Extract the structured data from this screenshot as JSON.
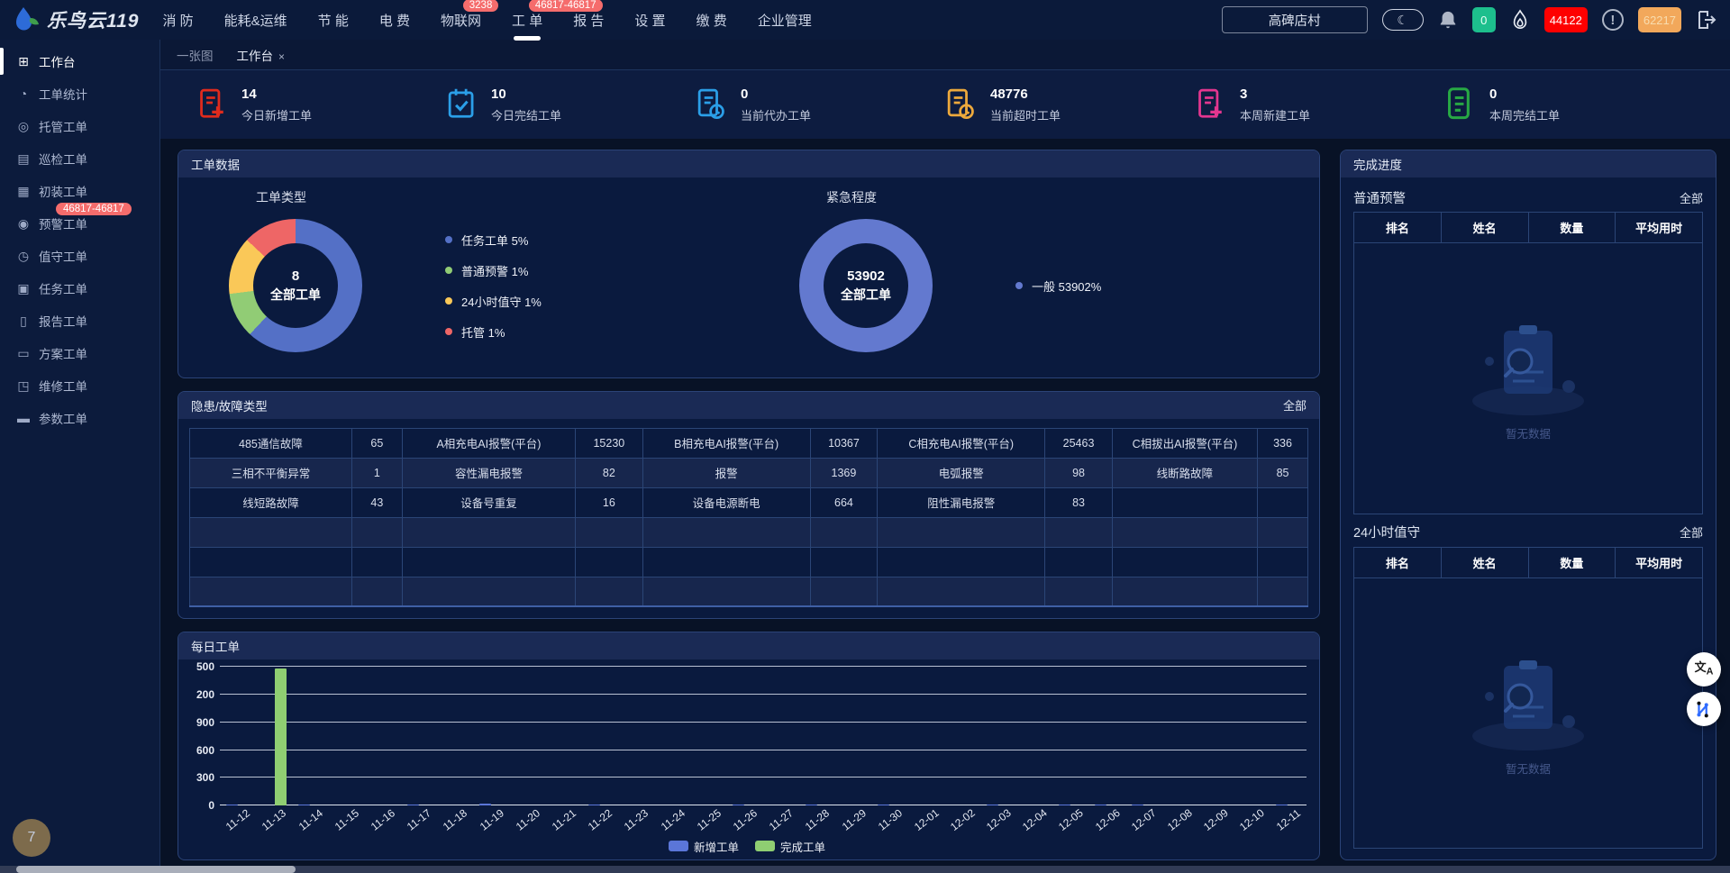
{
  "topbar": {
    "brand": "乐鸟云119",
    "nav_items": [
      {
        "label": "消 防"
      },
      {
        "label": "能耗&运维"
      },
      {
        "label": "节 能"
      },
      {
        "label": "电 费"
      },
      {
        "label": "物联网",
        "badge": "3238"
      },
      {
        "label": "工 单",
        "badge": "46817-46817",
        "active": true
      },
      {
        "label": "报 告"
      },
      {
        "label": "设 置"
      },
      {
        "label": "缴 费"
      },
      {
        "label": "企业管理"
      }
    ],
    "site_selector": "高碑店村",
    "counters": {
      "green": "0",
      "red": "44122",
      "orange": "62217"
    }
  },
  "sidebar": {
    "items": [
      {
        "label": "工作台",
        "icon": "workbench-icon",
        "glyph": "⊞",
        "active": true
      },
      {
        "label": "工单统计",
        "icon": "statistics-icon",
        "glyph": "◔"
      },
      {
        "label": "托管工单",
        "icon": "hosting-icon",
        "glyph": "◎"
      },
      {
        "label": "巡检工单",
        "icon": "inspection-icon",
        "glyph": "▤"
      },
      {
        "label": "初装工单",
        "icon": "install-icon",
        "glyph": "▦"
      },
      {
        "label": "预警工单",
        "icon": "alarm-icon",
        "glyph": "◉",
        "badge": "46817-46817"
      },
      {
        "label": "值守工单",
        "icon": "duty-icon",
        "glyph": "◷"
      },
      {
        "label": "任务工单",
        "icon": "task-icon",
        "glyph": "▣"
      },
      {
        "label": "报告工单",
        "icon": "report-icon",
        "glyph": "▯"
      },
      {
        "label": "方案工单",
        "icon": "plan-icon",
        "glyph": "▭"
      },
      {
        "label": "维修工单",
        "icon": "repair-icon",
        "glyph": "◳"
      },
      {
        "label": "参数工单",
        "icon": "parameter-icon",
        "glyph": "▬"
      }
    ]
  },
  "tabs": {
    "items": [
      {
        "label": "一张图"
      },
      {
        "label": "工作台",
        "closable": true,
        "active": true
      }
    ]
  },
  "stats": {
    "items": [
      {
        "value": "14",
        "label": "今日新增工单",
        "icon": "clipboard-plus-icon",
        "color": "#e02b1d"
      },
      {
        "value": "10",
        "label": "今日完结工单",
        "icon": "calendar-check-icon",
        "color": "#2b9fe8"
      },
      {
        "value": "0",
        "label": "当前代办工单",
        "icon": "clipboard-clock-icon",
        "color": "#2b9fe8"
      },
      {
        "value": "48776",
        "label": "当前超时工单",
        "icon": "clipboard-clock-icon",
        "color": "#eda93c"
      },
      {
        "value": "3",
        "label": "本周新建工单",
        "icon": "clipboard-plus-icon",
        "color": "#e3368f"
      },
      {
        "value": "0",
        "label": "本周完结工单",
        "icon": "clipboard-lines-icon",
        "color": "#27a844"
      }
    ]
  },
  "panels": {
    "work_data": {
      "title": "工单数据"
    },
    "fault": {
      "title": "隐患/故障类型",
      "all_label": "全部",
      "rows": [
        [
          "485通信故障",
          "65",
          "A相充电AI报警(平台)",
          "15230",
          "B相充电AI报警(平台)",
          "10367",
          "C相充电AI报警(平台)",
          "25463",
          "C相拔出AI报警(平台)",
          "336"
        ],
        [
          "三相不平衡异常",
          "1",
          "容性漏电报警",
          "82",
          "报警",
          "1369",
          "电弧报警",
          "98",
          "线断路故障",
          "85"
        ],
        [
          "线短路故障",
          "43",
          "设备号重复",
          "16",
          "设备电源断电",
          "664",
          "阻性漏电报警",
          "83",
          "",
          ""
        ],
        [
          "",
          "",
          "",
          "",
          "",
          "",
          "",
          "",
          "",
          ""
        ],
        [
          "",
          "",
          "",
          "",
          "",
          "",
          "",
          "",
          "",
          ""
        ],
        [
          "",
          "",
          "",
          "",
          "",
          "",
          "",
          "",
          "",
          ""
        ]
      ]
    },
    "daily": {
      "title": "每日工单"
    },
    "progress": {
      "title": "完成进度",
      "sections": [
        {
          "title": "普通预警",
          "all_label": "全部",
          "headers": [
            "排名",
            "姓名",
            "数量",
            "平均用时"
          ],
          "empty_text": "暂无数据"
        },
        {
          "title": "24小时值守",
          "all_label": "全部",
          "headers": [
            "排名",
            "姓名",
            "数量",
            "平均用时"
          ],
          "empty_text": "暂无数据"
        }
      ]
    }
  },
  "chart_data": [
    {
      "type": "pie",
      "title": "工单类型",
      "center_value": "8",
      "center_label": "全部工单",
      "segments": [
        {
          "name": "任务工单",
          "value_label": "5%",
          "color": "#5470c6",
          "arc_pct": 62
        },
        {
          "name": "普通预警",
          "value_label": "1%",
          "color": "#91cc75",
          "arc_pct": 11
        },
        {
          "name": "24小时值守",
          "value_label": "1%",
          "color": "#fac858",
          "arc_pct": 14
        },
        {
          "name": "托管",
          "value_label": "1%",
          "color": "#ee6666",
          "arc_pct": 13
        }
      ],
      "legend_position": "right"
    },
    {
      "type": "pie",
      "title": "紧急程度",
      "center_value": "53902",
      "center_label": "全部工单",
      "segments": [
        {
          "name": "一般",
          "value_label": "53902%",
          "color": "#6379cf",
          "arc_pct": 100
        }
      ],
      "legend_position": "right"
    },
    {
      "type": "bar",
      "title": "每日工单",
      "categories": [
        "11-12",
        "11-13",
        "11-14",
        "11-15",
        "11-16",
        "11-17",
        "11-18",
        "11-19",
        "11-20",
        "11-21",
        "11-22",
        "11-23",
        "11-24",
        "11-25",
        "11-26",
        "11-27",
        "11-28",
        "11-29",
        "11-30",
        "12-01",
        "12-02",
        "12-03",
        "12-04",
        "12-05",
        "12-06",
        "12-07",
        "12-08",
        "12-09",
        "12-10",
        "12-11"
      ],
      "series": [
        {
          "name": "新增工单",
          "color": "#5b76d8",
          "values": [
            14,
            0,
            12,
            0,
            0,
            10,
            0,
            16,
            0,
            0,
            8,
            0,
            0,
            0,
            8,
            0,
            12,
            0,
            8,
            0,
            0,
            10,
            0,
            12,
            14,
            10,
            0,
            0,
            0,
            14
          ]
        },
        {
          "name": "完成工单",
          "color": "#8fce72",
          "values": [
            0,
            1480,
            0,
            0,
            0,
            0,
            0,
            0,
            0,
            0,
            0,
            0,
            0,
            0,
            0,
            0,
            0,
            0,
            0,
            0,
            0,
            0,
            0,
            0,
            0,
            0,
            0,
            0,
            0,
            0
          ]
        }
      ],
      "ylim": [
        0,
        1500
      ],
      "ytick_labels_shown": [
        "0",
        "300",
        "600",
        "900",
        "200",
        "500"
      ],
      "grid": true,
      "legend_position": "bottom"
    }
  ],
  "page_bubble": "7"
}
